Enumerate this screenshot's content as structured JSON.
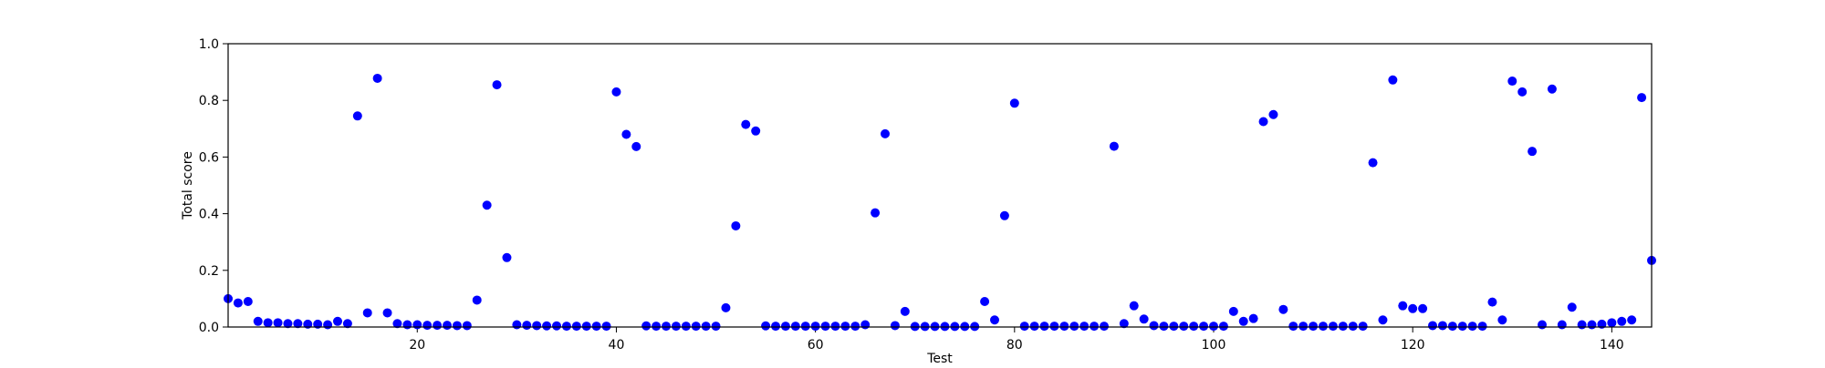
{
  "chart_data": {
    "type": "scatter",
    "title": "",
    "xlabel": "Test",
    "ylabel": "Total score",
    "xlim": [
      1,
      144
    ],
    "ylim": [
      0.0,
      1.0
    ],
    "xticks": [
      20,
      40,
      60,
      80,
      100,
      120,
      140
    ],
    "yticks": [
      0.0,
      0.2,
      0.4,
      0.6,
      0.8,
      1.0
    ],
    "ytick_labels": [
      "0.0",
      "0.2",
      "0.4",
      "0.6",
      "0.8",
      "1.0"
    ],
    "grid": false,
    "marker_color": "#0000ff",
    "series": [
      {
        "x": [
          1,
          2,
          3,
          4,
          5,
          6,
          7,
          8,
          9,
          10,
          11,
          12,
          13,
          14,
          15,
          16,
          17,
          18,
          19,
          20,
          21,
          22,
          23,
          24,
          25,
          26,
          27,
          28,
          29,
          30,
          31,
          32,
          33,
          34,
          35,
          36,
          37,
          38,
          39,
          40,
          41,
          42,
          43,
          44,
          45,
          46,
          47,
          48,
          49,
          50,
          51,
          52,
          53,
          54,
          55,
          56,
          57,
          58,
          59,
          60,
          61,
          62,
          63,
          64,
          65,
          66,
          67,
          68,
          69,
          70,
          71,
          72,
          73,
          74,
          75,
          76,
          77,
          78,
          79,
          80,
          81,
          82,
          83,
          84,
          85,
          86,
          87,
          88,
          89,
          90,
          91,
          92,
          93,
          94,
          95,
          96,
          97,
          98,
          99,
          100,
          101,
          102,
          103,
          104,
          105,
          106,
          107,
          108,
          109,
          110,
          111,
          112,
          113,
          114,
          115,
          116,
          117,
          118,
          119,
          120,
          121,
          122,
          123,
          124,
          125,
          126,
          127,
          128,
          129,
          130,
          131,
          132,
          133,
          134,
          135,
          136,
          137,
          138,
          139,
          140,
          141,
          142,
          143,
          144
        ],
        "y": [
          0.1,
          0.085,
          0.09,
          0.02,
          0.015,
          0.015,
          0.012,
          0.012,
          0.01,
          0.01,
          0.008,
          0.02,
          0.012,
          0.745,
          0.05,
          0.878,
          0.05,
          0.012,
          0.008,
          0.008,
          0.006,
          0.006,
          0.006,
          0.005,
          0.005,
          0.095,
          0.43,
          0.855,
          0.245,
          0.008,
          0.006,
          0.005,
          0.004,
          0.004,
          0.003,
          0.003,
          0.003,
          0.003,
          0.003,
          0.83,
          0.68,
          0.637,
          0.004,
          0.003,
          0.003,
          0.003,
          0.003,
          0.003,
          0.003,
          0.003,
          0.068,
          0.357,
          0.715,
          0.692,
          0.004,
          0.003,
          0.003,
          0.003,
          0.003,
          0.003,
          0.003,
          0.003,
          0.003,
          0.003,
          0.008,
          0.403,
          0.682,
          0.005,
          0.055,
          0.002,
          0.002,
          0.002,
          0.002,
          0.002,
          0.002,
          0.002,
          0.09,
          0.025,
          0.393,
          0.79,
          0.003,
          0.003,
          0.003,
          0.003,
          0.003,
          0.003,
          0.003,
          0.003,
          0.003,
          0.638,
          0.012,
          0.075,
          0.028,
          0.005,
          0.003,
          0.003,
          0.003,
          0.003,
          0.003,
          0.003,
          0.003,
          0.055,
          0.02,
          0.03,
          0.725,
          0.75,
          0.062,
          0.003,
          0.003,
          0.003,
          0.003,
          0.003,
          0.003,
          0.003,
          0.003,
          0.58,
          0.025,
          0.872,
          0.075,
          0.065,
          0.065,
          0.005,
          0.005,
          0.003,
          0.003,
          0.003,
          0.003,
          0.088,
          0.025,
          0.868,
          0.83,
          0.62,
          0.008,
          0.84,
          0.008,
          0.07,
          0.008,
          0.008,
          0.01,
          0.015,
          0.02,
          0.025,
          0.81,
          0.235
        ]
      }
    ]
  }
}
